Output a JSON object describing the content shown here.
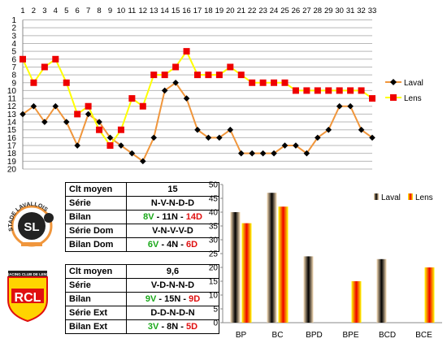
{
  "chart_data": [
    {
      "type": "line",
      "x": [
        1,
        2,
        3,
        4,
        5,
        6,
        7,
        8,
        9,
        10,
        11,
        12,
        13,
        14,
        15,
        16,
        17,
        18,
        19,
        20,
        21,
        22,
        23,
        24,
        25,
        26,
        27,
        28,
        29,
        30,
        31,
        32,
        33
      ],
      "y_ticks": [
        1,
        2,
        3,
        4,
        5,
        6,
        7,
        8,
        9,
        10,
        11,
        12,
        13,
        14,
        15,
        16,
        17,
        18,
        19,
        20
      ],
      "ylim": [
        1,
        20
      ],
      "y_inverted": true,
      "grid": true,
      "legend_position": "right",
      "series": [
        {
          "name": "Laval",
          "color": "#f0963c",
          "marker_color": "#000000",
          "values": [
            13,
            12,
            14,
            12,
            14,
            17,
            13,
            14,
            16,
            17,
            18,
            19,
            16,
            10,
            9,
            11,
            15,
            16,
            16,
            15,
            18,
            18,
            18,
            18,
            17,
            17,
            18,
            16,
            15,
            12,
            12,
            15,
            16
          ]
        },
        {
          "name": "Lens",
          "color": "#ffff00",
          "marker_color": "#ee0000",
          "values": [
            6,
            9,
            7,
            6,
            9,
            13,
            12,
            15,
            17,
            15,
            11,
            12,
            8,
            8,
            7,
            5,
            8,
            8,
            8,
            7,
            8,
            9,
            9,
            9,
            9,
            10,
            10,
            10,
            10,
            10,
            10,
            10,
            11
          ]
        }
      ]
    },
    {
      "type": "bar",
      "categories": [
        "BP",
        "BC",
        "BPD",
        "BPE",
        "BCD",
        "BCE"
      ],
      "ylim": [
        0,
        50
      ],
      "y_ticks": [
        0,
        5,
        10,
        15,
        20,
        25,
        30,
        35,
        40,
        45,
        50
      ],
      "legend_position": "top-right",
      "series": [
        {
          "name": "Laval",
          "values": [
            40,
            47,
            24,
            0,
            23,
            0
          ]
        },
        {
          "name": "Lens",
          "values": [
            36,
            42,
            0,
            15,
            0,
            20
          ]
        }
      ]
    }
  ],
  "tables": {
    "laval": {
      "rows": [
        {
          "label": "Clt moyen",
          "value": "15"
        },
        {
          "label": "Série",
          "value": "N-V-N-D-D"
        },
        {
          "label": "Bilan",
          "v": "8V",
          "sep1": " - ",
          "n": "11N",
          "sep2": " - ",
          "d": "14D"
        },
        {
          "label": "Série Dom",
          "value": "V-N-V-V-D"
        },
        {
          "label": "Bilan Dom",
          "v": "6V",
          "sep1": " - ",
          "n": "4N",
          "sep2": " - ",
          "d": "6D"
        }
      ]
    },
    "lens": {
      "rows": [
        {
          "label": "Clt moyen",
          "value": "9,6"
        },
        {
          "label": "Série",
          "value": "V-D-N-N-D"
        },
        {
          "label": "Bilan",
          "v": "9V",
          "sep1": " - ",
          "n": "15N",
          "sep2": " - ",
          "d": "9D"
        },
        {
          "label": "Série Ext",
          "value": "D-D-N-D-N"
        },
        {
          "label": "Bilan Ext",
          "v": "3V",
          "sep1": " - ",
          "n": "8N",
          "sep2": " - ",
          "d": "5D"
        }
      ]
    }
  },
  "logos": {
    "laval_text": "STADE LAVALLOIS",
    "lens_top": "RACING CLUB DE LENS",
    "lens_letters": "RCL"
  },
  "colors": {
    "laval_line": "#f0963c",
    "lens_line": "#ffff00",
    "lens_marker": "#ee0000",
    "green": "#1aa81a",
    "red": "#e01010"
  }
}
